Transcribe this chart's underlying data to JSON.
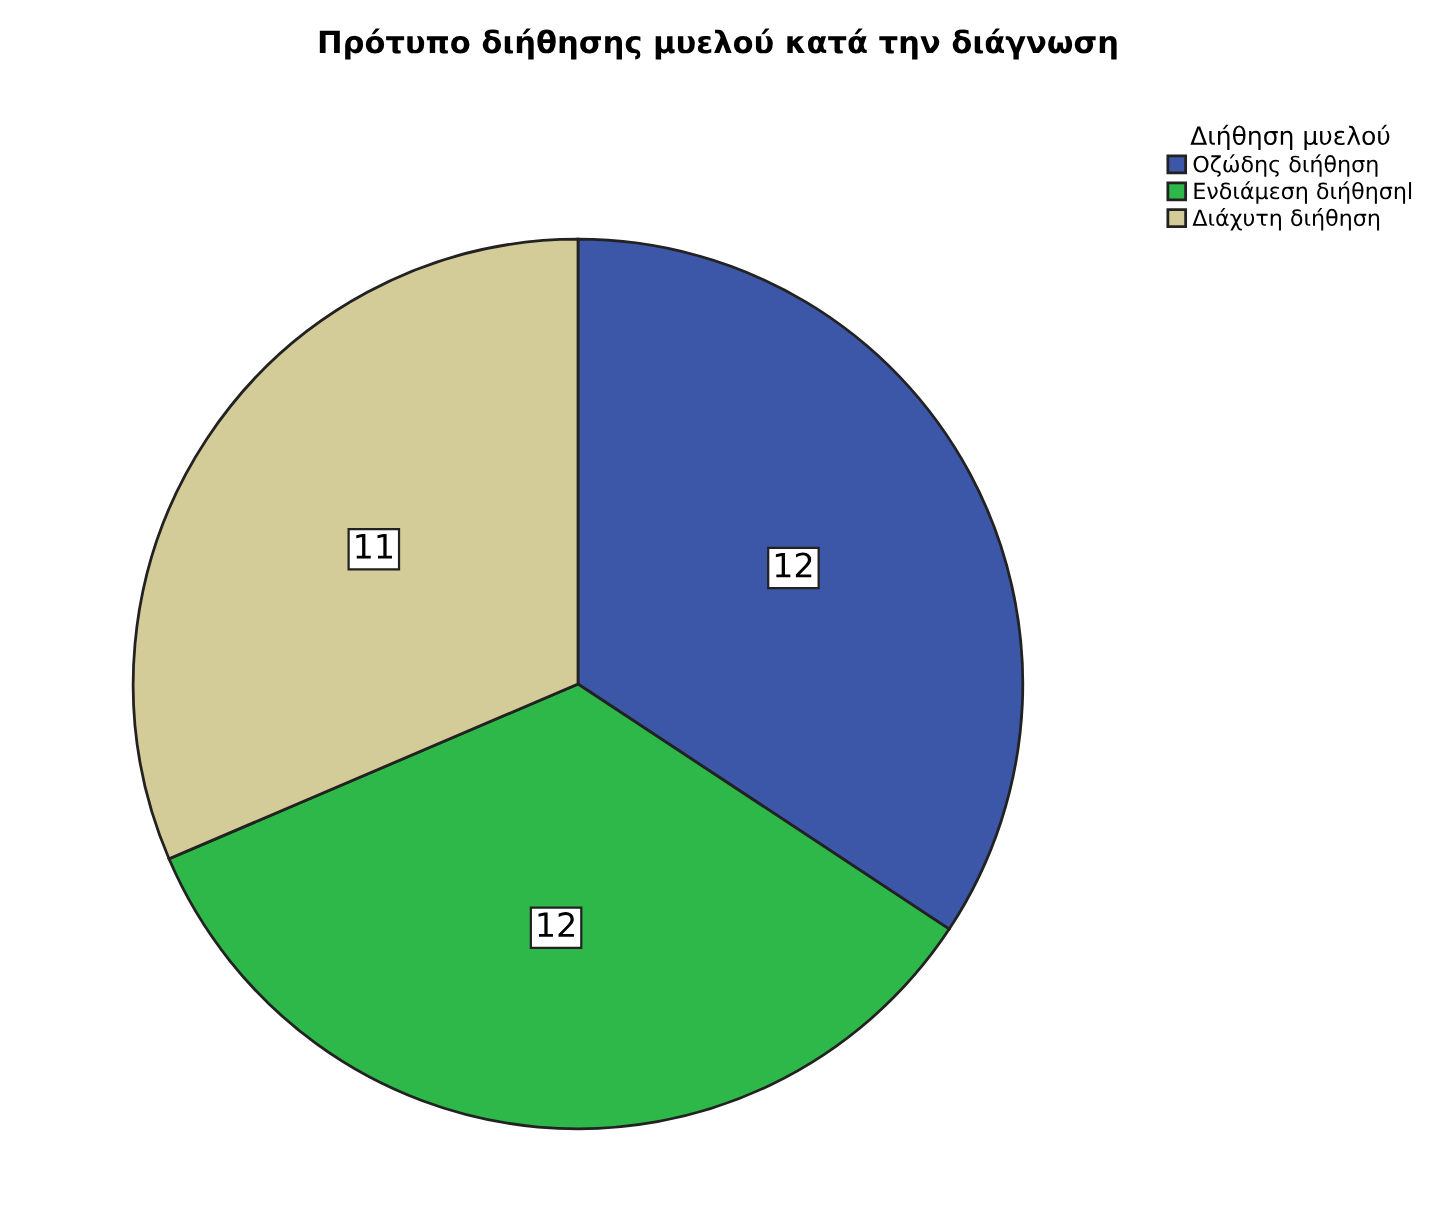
{
  "chart_data": {
    "type": "pie",
    "title": "Πρότυπο διήθησης μυελού κατά την διάγνωση",
    "legend_title": "Διήθηση μυελού",
    "categories": [
      "Οζώδης διήθηση",
      "Ενδιάμεση διήθησηl",
      "Διάχυτη διήθηση"
    ],
    "values": [
      12,
      12,
      11
    ],
    "colors": [
      "#3d57a8",
      "#2eb84a",
      "#d4cc98"
    ],
    "data_labels": true,
    "legend": "top right"
  }
}
